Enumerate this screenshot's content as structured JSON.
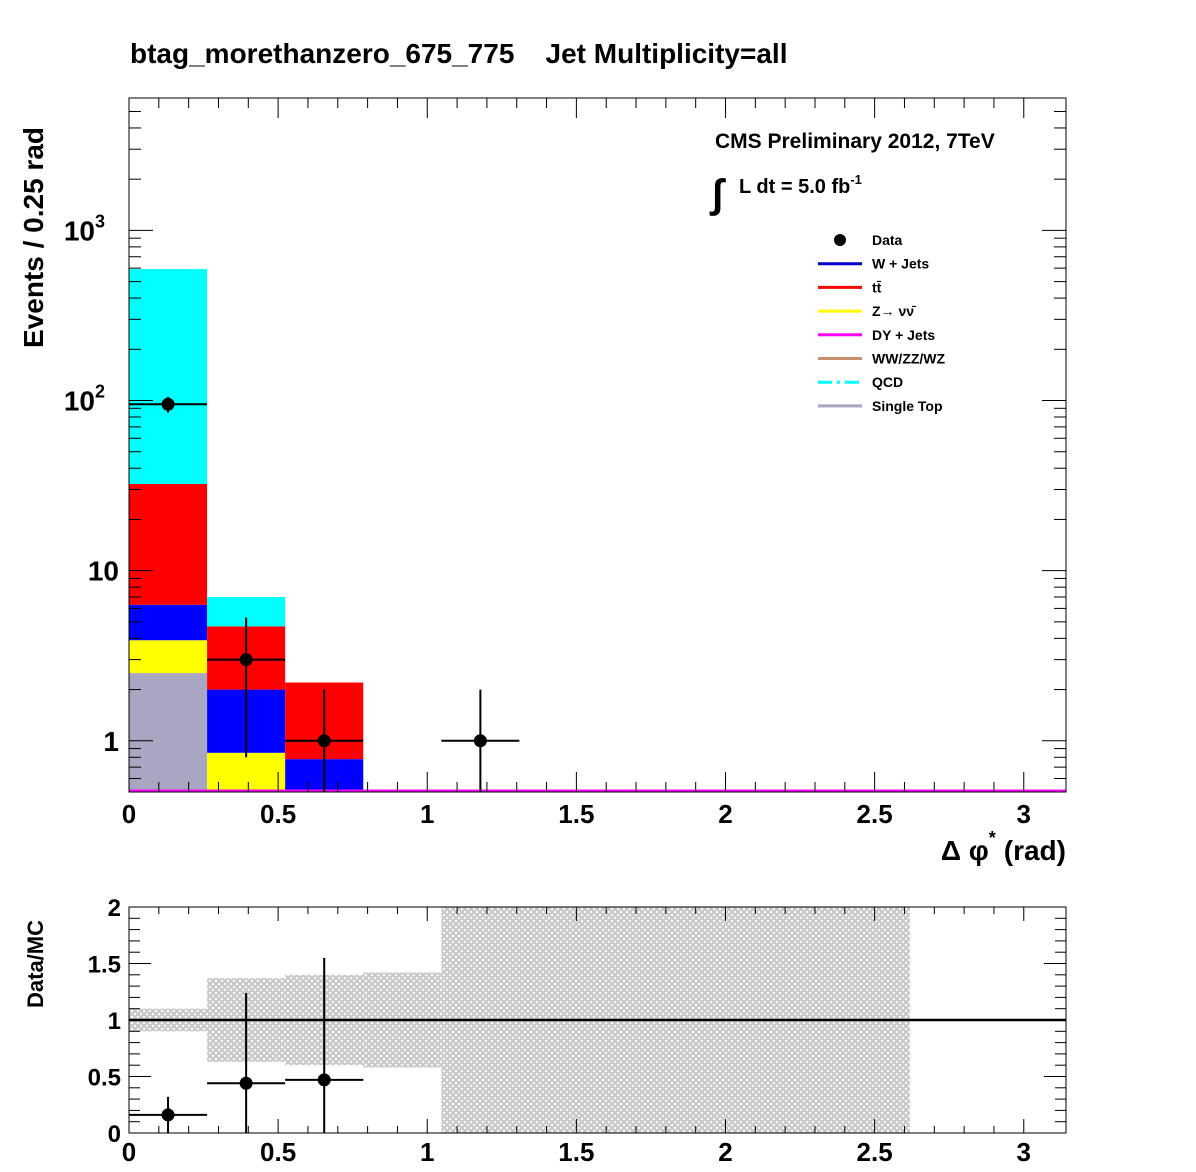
{
  "chart_data": [
    {
      "type": "bar",
      "stacked": true,
      "title": "btag_morethanzero_675_775    Jet Multiplicity=all",
      "xlabel": "Δ φ* (rad)",
      "xlabel_main": "Δ φ",
      "xlabel_sup": "*",
      "xlabel_unit": "(rad)",
      "ylabel": "Events / 0.25 rad",
      "yscale": "log",
      "xlim": [
        0,
        3.1416
      ],
      "ylim": [
        0.5,
        6000
      ],
      "bin_edges": [
        0,
        0.2618,
        0.5236,
        0.7854,
        1.0472,
        1.309,
        1.5708,
        1.8326,
        2.0944,
        2.3562,
        2.618,
        2.8798,
        3.1416
      ],
      "x_ticks": [
        {
          "value": 0,
          "label": "0"
        },
        {
          "value": 0.5,
          "label": "0.5"
        },
        {
          "value": 1,
          "label": "1"
        },
        {
          "value": 1.5,
          "label": "1.5"
        },
        {
          "value": 2,
          "label": "2"
        },
        {
          "value": 2.5,
          "label": "2.5"
        },
        {
          "value": 3,
          "label": "3"
        }
      ],
      "y_ticks": [
        {
          "value": 1,
          "label": "1"
        },
        {
          "value": 10,
          "label": "10"
        },
        {
          "value": 100,
          "label": "10",
          "sup": "2"
        },
        {
          "value": 1000,
          "label": "10",
          "sup": "3"
        }
      ],
      "series": [
        {
          "name": "Single Top",
          "color": "#a8a6c0",
          "values": [
            2.5,
            0,
            0
          ]
        },
        {
          "name": "Z→ νν̄",
          "color": "#ffff00",
          "values": [
            1.4,
            0.85,
            0
          ]
        },
        {
          "name": "W + Jets",
          "color": "#0000ff",
          "values": [
            2.4,
            1.15,
            0.78
          ]
        },
        {
          "name": "tt̄",
          "color": "#ff0000",
          "values": [
            26,
            2.7,
            1.42
          ]
        },
        {
          "name": "QCD",
          "color": "#00ffff",
          "values": [
            560,
            2.3,
            0
          ]
        },
        {
          "name": "DY + Jets",
          "color": "#ff00ff",
          "values": [
            0,
            0,
            0
          ]
        },
        {
          "name": "WW/ZZ/WZ",
          "color": "#c8906c",
          "values": [
            0,
            0,
            0
          ]
        }
      ],
      "data_points": [
        {
          "x": 0.1309,
          "y": 95,
          "err_lo": 10,
          "err_hi": 10,
          "xerr": 0.1309
        },
        {
          "x": 0.3927,
          "y": 3,
          "err_lo": 2.2,
          "err_hi": 2.3,
          "xerr": 0.1309
        },
        {
          "x": 0.6545,
          "y": 1,
          "err_lo": 0.85,
          "err_hi": 1.0,
          "xerr": 0.1309
        },
        {
          "x": 1.1781,
          "y": 1,
          "err_lo": 0.85,
          "err_hi": 1.0,
          "xerr": 0.1309
        }
      ],
      "annotations": {
        "line1": "CMS Preliminary 2012, 7TeV",
        "lumi_integral": "∫",
        "lumi_text": "L dt = 5.0 fb",
        "lumi_sup": "-1"
      },
      "legend": {
        "placement": "top-right",
        "entries": [
          {
            "label": "Data",
            "style": "marker",
            "color": "#000000"
          },
          {
            "label": "W + Jets",
            "style": "line",
            "color": "#0000cc"
          },
          {
            "label": "tt̄",
            "style": "line",
            "color": "#ff0000"
          },
          {
            "label": "Z→ νν̄",
            "style": "line",
            "color": "#ffff00"
          },
          {
            "label": "DY + Jets",
            "style": "line",
            "color": "#ff00ff"
          },
          {
            "label": "WW/ZZ/WZ",
            "style": "line",
            "color": "#c8906c"
          },
          {
            "label": "QCD",
            "style": "dashdot",
            "color": "#00ffff"
          },
          {
            "label": "Single Top",
            "style": "line",
            "color": "#a8a6c0"
          }
        ]
      }
    },
    {
      "type": "scatter",
      "ylabel": "Data/MC",
      "xlim": [
        0,
        3.1416
      ],
      "ylim": [
        0,
        2
      ],
      "reference_line": 1,
      "x_ticks": [
        {
          "value": 0,
          "label": "0"
        },
        {
          "value": 0.5,
          "label": "0.5"
        },
        {
          "value": 1,
          "label": "1"
        },
        {
          "value": 1.5,
          "label": "1.5"
        },
        {
          "value": 2,
          "label": "2"
        },
        {
          "value": 2.5,
          "label": "2.5"
        },
        {
          "value": 3,
          "label": "3"
        }
      ],
      "y_ticks": [
        {
          "value": 0,
          "label": "0"
        },
        {
          "value": 0.5,
          "label": "0.5"
        },
        {
          "value": 1,
          "label": "1"
        },
        {
          "value": 1.5,
          "label": "1.5"
        },
        {
          "value": 2,
          "label": "2"
        }
      ],
      "uncertainty_band": [
        {
          "x0": 0,
          "x1": 0.2618,
          "lo": 0.9,
          "hi": 1.1
        },
        {
          "x0": 0.2618,
          "x1": 0.5236,
          "lo": 0.63,
          "hi": 1.37
        },
        {
          "x0": 0.5236,
          "x1": 0.7854,
          "lo": 0.6,
          "hi": 1.4
        },
        {
          "x0": 0.7854,
          "x1": 1.0472,
          "lo": 0.58,
          "hi": 1.42
        },
        {
          "x0": 1.0472,
          "x1": 2.618,
          "lo": 0,
          "hi": 2
        }
      ],
      "band_color": "#c8c8c8",
      "points": [
        {
          "x": 0.1309,
          "y": 0.16,
          "err_lo": 0.16,
          "err_hi": 0.16,
          "xerr": 0.1309
        },
        {
          "x": 0.3927,
          "y": 0.44,
          "err_lo": 0.44,
          "err_hi": 0.8,
          "xerr": 0.1309
        },
        {
          "x": 0.6545,
          "y": 0.47,
          "err_lo": 0.47,
          "err_hi": 1.08,
          "xerr": 0.1309
        }
      ]
    }
  ]
}
